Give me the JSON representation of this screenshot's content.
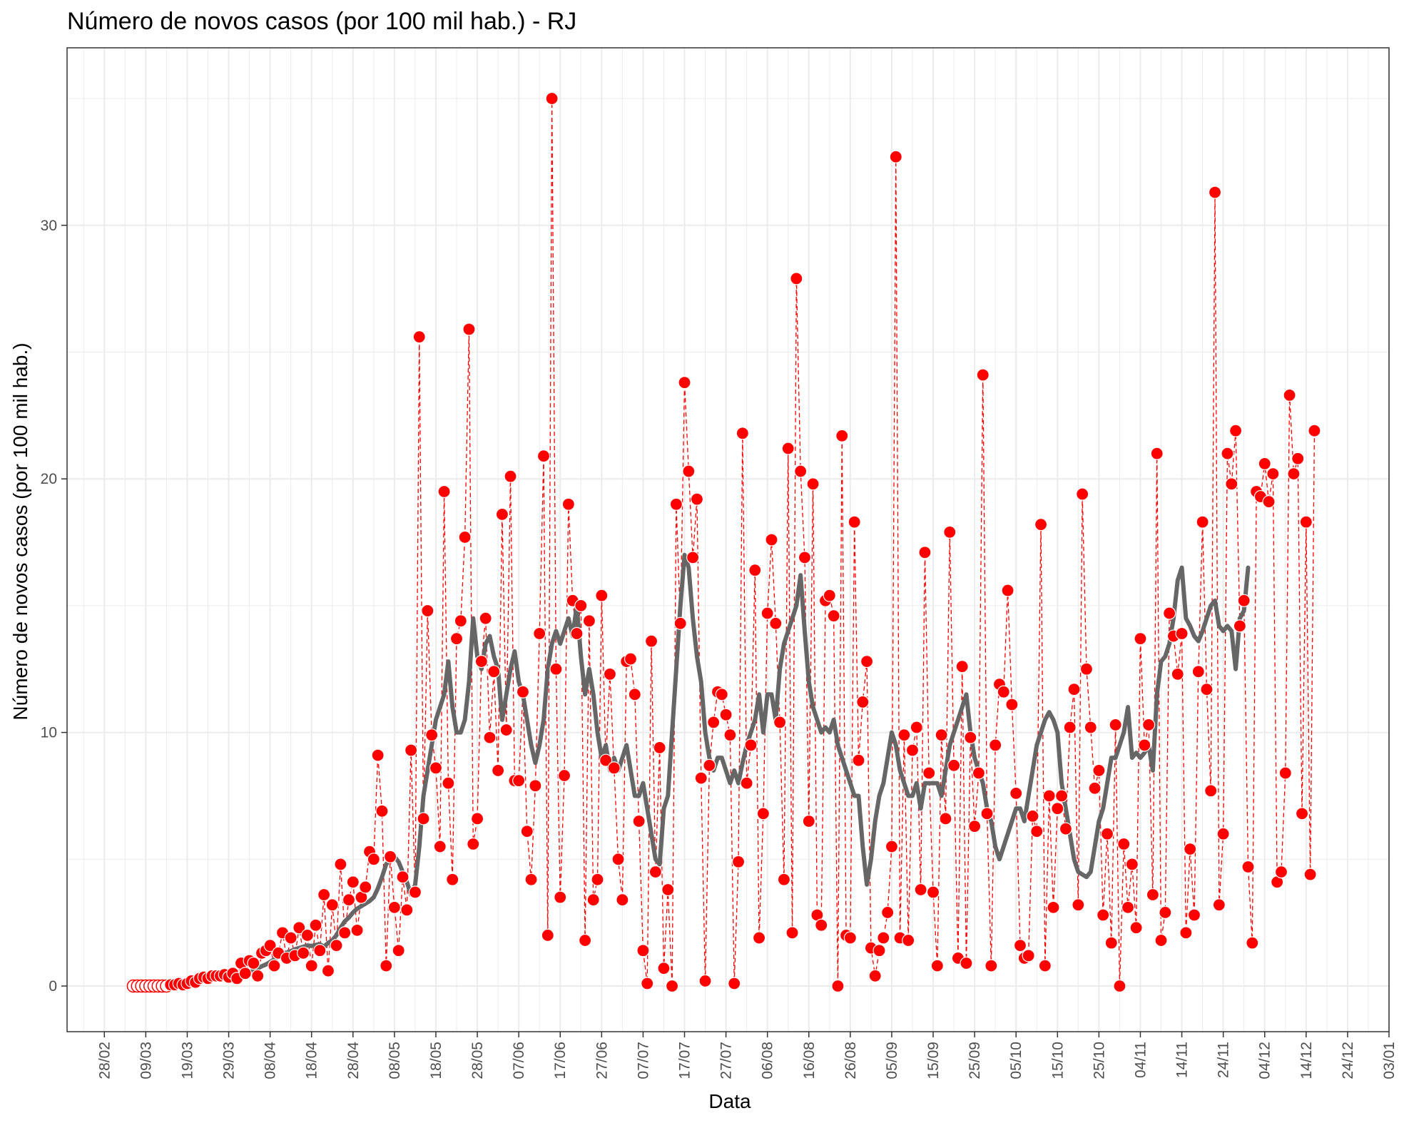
{
  "chart_data": {
    "type": "line",
    "title": "Número de novos casos (por 100 mil hab.) - RJ",
    "xlabel": "Data",
    "ylabel": "Número de novos casos (por 100 mil hab.)",
    "x_start": "2020-02-28",
    "x_end": "2021-01-03",
    "xlim": [
      "2020-02-19",
      "2021-01-03"
    ],
    "ylim": [
      -1.8,
      37
    ],
    "y_ticks": [
      0,
      10,
      20,
      30
    ],
    "x_ticks": [
      "28/02",
      "09/03",
      "19/03",
      "29/03",
      "08/04",
      "18/04",
      "28/04",
      "08/05",
      "18/05",
      "28/05",
      "07/06",
      "17/06",
      "27/06",
      "07/07",
      "17/07",
      "27/07",
      "06/08",
      "16/08",
      "26/08",
      "05/09",
      "15/09",
      "25/09",
      "05/10",
      "15/10",
      "25/10",
      "04/11",
      "14/11",
      "24/11",
      "04/12",
      "14/12",
      "24/12",
      "03/01"
    ],
    "grid": true,
    "theme": "black-white with light grey grid",
    "colors": {
      "points": "#ff0000",
      "dashed_line": "#ff0000",
      "moving_average": "#666666"
    },
    "series": [
      {
        "kind": "daily points joined by dashed line",
        "start_date": "2020-03-06",
        "values": [
          0,
          0,
          0,
          0,
          0,
          0,
          0,
          0,
          0,
          0.05,
          0.05,
          0.1,
          0.05,
          0.1,
          0.2,
          0.15,
          0.3,
          0.35,
          0.3,
          0.4,
          0.4,
          0.4,
          0.45,
          0.35,
          0.5,
          0.3,
          0.9,
          0.5,
          1.0,
          0.9,
          0.4,
          1.3,
          1.4,
          1.6,
          0.8,
          1.3,
          2.1,
          1.1,
          1.9,
          1.2,
          2.3,
          1.3,
          2.0,
          0.8,
          2.4,
          1.4,
          3.6,
          0.6,
          3.2,
          1.6,
          4.8,
          2.1,
          3.4,
          4.1,
          2.2,
          3.5,
          3.9,
          5.3,
          5.0,
          9.1,
          6.9,
          0.8,
          5.1,
          3.1,
          1.4,
          4.3,
          3.0,
          9.3,
          3.7,
          25.6,
          6.6,
          14.8,
          9.9,
          8.6,
          5.5,
          19.5,
          8.0,
          4.2,
          13.7,
          14.4,
          17.7,
          25.9,
          5.6,
          6.6,
          12.8,
          14.5,
          9.8,
          12.4,
          8.5,
          18.6,
          10.1,
          20.1,
          8.1,
          8.1,
          11.6,
          6.1,
          4.2,
          7.9,
          13.9,
          20.9,
          2.0,
          35.0,
          12.5,
          3.5,
          8.3,
          19.0,
          15.2,
          13.9,
          15.0,
          1.8,
          14.4,
          3.4,
          4.2,
          15.4,
          8.9,
          12.3,
          8.6,
          5.0,
          3.4,
          12.8,
          12.9,
          11.5,
          6.5,
          1.4,
          0.1,
          13.6,
          4.5,
          9.4,
          0.7,
          3.8,
          0.0,
          19.0,
          14.3,
          23.8,
          20.3,
          16.9,
          19.2,
          8.2,
          0.2,
          8.7,
          10.4,
          11.6,
          11.5,
          10.7,
          9.9,
          0.1,
          4.9,
          21.8,
          8.0,
          9.5,
          16.4,
          1.9,
          6.8,
          14.7,
          17.6,
          14.3,
          10.4,
          4.2,
          21.2,
          2.1,
          27.9,
          20.3,
          16.9,
          6.5,
          19.8,
          2.8,
          2.4,
          15.2,
          15.4,
          14.6,
          0.0,
          21.7,
          2.0,
          1.9,
          18.3,
          8.9,
          11.2,
          12.8,
          1.5,
          0.4,
          1.4,
          1.9,
          2.9,
          5.5,
          32.7,
          1.9,
          9.9,
          1.8,
          9.3,
          10.2,
          3.8,
          17.1,
          8.4,
          3.7,
          0.8,
          9.9,
          6.6,
          17.9,
          8.7,
          1.1,
          12.6,
          0.9,
          9.8,
          6.3,
          8.4,
          24.1,
          6.8,
          0.8,
          9.5,
          11.9,
          11.6,
          15.6,
          11.1,
          7.6,
          1.6,
          1.1,
          1.2,
          6.7,
          6.1,
          18.2,
          0.8,
          7.5,
          3.1,
          7.0,
          7.5,
          6.2,
          10.2,
          11.7,
          3.2,
          19.4,
          12.5,
          10.2,
          7.8,
          8.5,
          2.8,
          6.0,
          1.7,
          10.3,
          0.0,
          5.6,
          3.1,
          4.8,
          2.3,
          13.7,
          9.5,
          10.3,
          3.6,
          21.0,
          1.8,
          2.9,
          14.7,
          13.8,
          12.3,
          13.9,
          2.1,
          5.4,
          2.8,
          12.4,
          18.3,
          11.7,
          7.7,
          31.3,
          3.2,
          6.0,
          21.0,
          19.8,
          21.9,
          14.2,
          15.2,
          4.7,
          1.7,
          19.5,
          19.3,
          20.6,
          19.1,
          20.2,
          4.1,
          4.5,
          8.4,
          23.3,
          20.2,
          20.8,
          6.8,
          18.3,
          4.4,
          21.9
        ]
      },
      {
        "kind": "7-day moving average",
        "start_date": "2020-03-09",
        "values": [
          0,
          0,
          0,
          0,
          0,
          0.02,
          0.04,
          0.06,
          0.08,
          0.1,
          0.12,
          0.15,
          0.18,
          0.22,
          0.25,
          0.28,
          0.3,
          0.32,
          0.35,
          0.37,
          0.38,
          0.4,
          0.42,
          0.45,
          0.5,
          0.55,
          0.62,
          0.7,
          0.78,
          0.85,
          0.95,
          1.05,
          1.15,
          1.25,
          1.32,
          1.38,
          1.45,
          1.5,
          1.55,
          1.6,
          1.58,
          1.62,
          1.65,
          1.55,
          1.7,
          1.8,
          2.0,
          2.3,
          2.55,
          2.7,
          2.9,
          3.05,
          3.15,
          3.25,
          3.35,
          3.5,
          3.85,
          4.3,
          4.8,
          5.0,
          5.1,
          4.9,
          4.5,
          4.1,
          3.6,
          4.0,
          5.5,
          7.5,
          8.5,
          9.5,
          10.5,
          11.0,
          11.5,
          12.8,
          11.0,
          10.0,
          10.0,
          10.5,
          12.0,
          14.5,
          13.0,
          12.5,
          13.5,
          13.8,
          13.0,
          12.5,
          10.5,
          11.5,
          12.5,
          13.2,
          12.0,
          11.5,
          10.5,
          9.5,
          8.8,
          9.5,
          10.5,
          12.5,
          13.5,
          14.0,
          13.5,
          14.0,
          14.5,
          13.8,
          15.0,
          13.0,
          11.5,
          12.5,
          11.5,
          10.0,
          9.0,
          9.5,
          8.5,
          9.0,
          8.5,
          9.0,
          9.5,
          8.5,
          7.5,
          7.5,
          8.0,
          7.0,
          6.0,
          5.0,
          4.8,
          7.0,
          7.5,
          10.0,
          12.5,
          15.0,
          17.0,
          16.5,
          14.5,
          13.0,
          12.0,
          10.0,
          9.0,
          8.5,
          9.0,
          9.0,
          8.5,
          8.0,
          8.5,
          8.0,
          8.8,
          9.5,
          10.0,
          10.5,
          11.5,
          10.0,
          11.5,
          11.5,
          10.5,
          12.5,
          13.5,
          14.0,
          14.5,
          15.0,
          16.2,
          14.0,
          12.0,
          11.0,
          10.5,
          10.0,
          10.2,
          10.0,
          10.5,
          9.5,
          9.0,
          8.5,
          8.0,
          7.5,
          7.5,
          5.5,
          4.0,
          5.0,
          6.5,
          7.5,
          8.0,
          9.0,
          10.0,
          9.5,
          8.5,
          8.0,
          7.5,
          7.5,
          8.0,
          7.0,
          8.0,
          8.0,
          8.0,
          8.0,
          7.5,
          8.5,
          9.5,
          10.0,
          10.5,
          11.0,
          11.5,
          10.0,
          9.0,
          8.5,
          8.0,
          7.0,
          6.5,
          5.5,
          5.0,
          5.5,
          6.0,
          6.5,
          7.0,
          7.0,
          6.5,
          7.5,
          8.5,
          9.5,
          10.0,
          10.5,
          10.8,
          10.5,
          10.0,
          8.0,
          7.0,
          6.0,
          5.0,
          4.5,
          4.4,
          4.3,
          4.5,
          5.5,
          6.5,
          7.0,
          8.0,
          9.0,
          9.0,
          9.5,
          10.0,
          11.0,
          9.0,
          9.2,
          9.0,
          9.2,
          9.5,
          8.5,
          11.5,
          12.8,
          13.0,
          13.5,
          14.5,
          16.0,
          16.5,
          14.5,
          14.2,
          13.8,
          13.6,
          14.0,
          14.5,
          15.0,
          15.2,
          14.2,
          14.0,
          14.2,
          14.0,
          12.5,
          14.5,
          14.8,
          16.5
        ]
      }
    ]
  }
}
